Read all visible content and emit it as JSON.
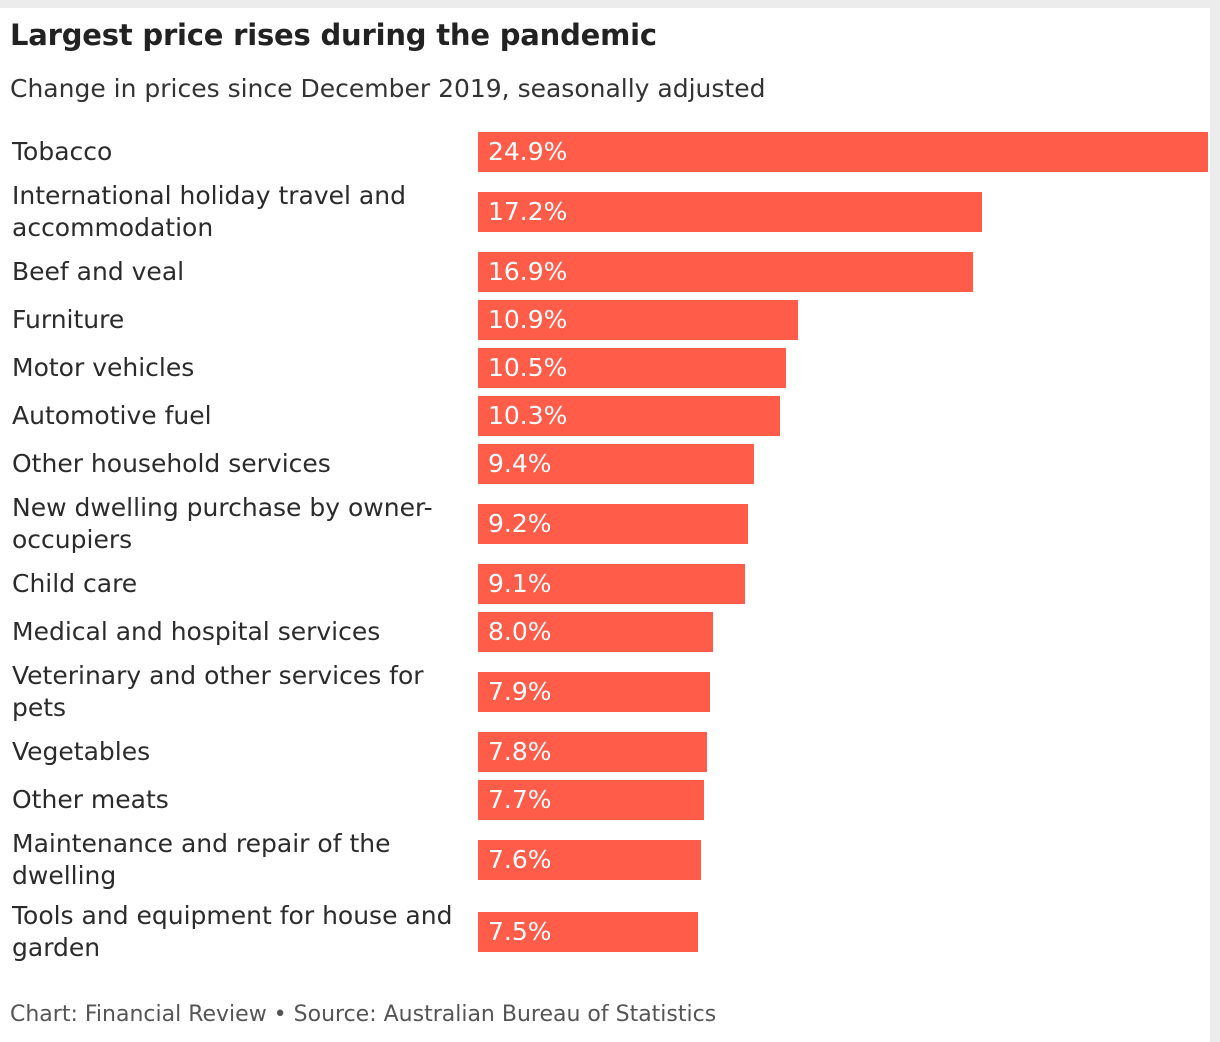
{
  "chart_data": {
    "type": "bar",
    "orientation": "horizontal",
    "title": "Largest price rises during the pandemic",
    "subtitle": "Change in prices since December 2019, seasonally adjusted",
    "categories": [
      "Tobacco",
      "International holiday travel and accommodation",
      "Beef and veal",
      "Furniture",
      "Motor vehicles",
      "Automotive fuel",
      "Other household services",
      "New dwelling purchase by owner-occupiers",
      "Child care",
      "Medical and hospital services",
      "Veterinary and other services for pets",
      "Vegetables",
      "Other meats",
      "Maintenance and repair of the dwelling",
      "Tools and equipment for house and garden"
    ],
    "category_lines": [
      [
        "Tobacco"
      ],
      [
        "International holiday travel and",
        "accommodation"
      ],
      [
        "Beef and veal"
      ],
      [
        "Furniture"
      ],
      [
        "Motor vehicles"
      ],
      [
        "Automotive fuel"
      ],
      [
        "Other household services"
      ],
      [
        "New dwelling purchase by owner-",
        "occupiers"
      ],
      [
        "Child care"
      ],
      [
        "Medical and hospital services"
      ],
      [
        "Veterinary and other services for",
        "pets"
      ],
      [
        "Vegetables"
      ],
      [
        "Other meats"
      ],
      [
        "Maintenance and repair of the",
        "dwelling"
      ],
      [
        "Tools and equipment for house and",
        "garden"
      ]
    ],
    "values": [
      24.9,
      17.2,
      16.9,
      10.9,
      10.5,
      10.3,
      9.4,
      9.2,
      9.1,
      8.0,
      7.9,
      7.8,
      7.7,
      7.6,
      7.5
    ],
    "data_labels": [
      "24.9%",
      "17.2%",
      "16.9%",
      "10.9%",
      "10.5%",
      "10.3%",
      "9.4%",
      "9.2%",
      "9.1%",
      "8.0%",
      "7.9%",
      "7.8%",
      "7.7%",
      "7.6%",
      "7.5%"
    ],
    "xlim": [
      0,
      24.9
    ],
    "grid": false,
    "legend": "none",
    "bar_color": "#ff5c4a",
    "source": "Chart: Financial Review • Source: Australian Bureau of Statistics"
  }
}
